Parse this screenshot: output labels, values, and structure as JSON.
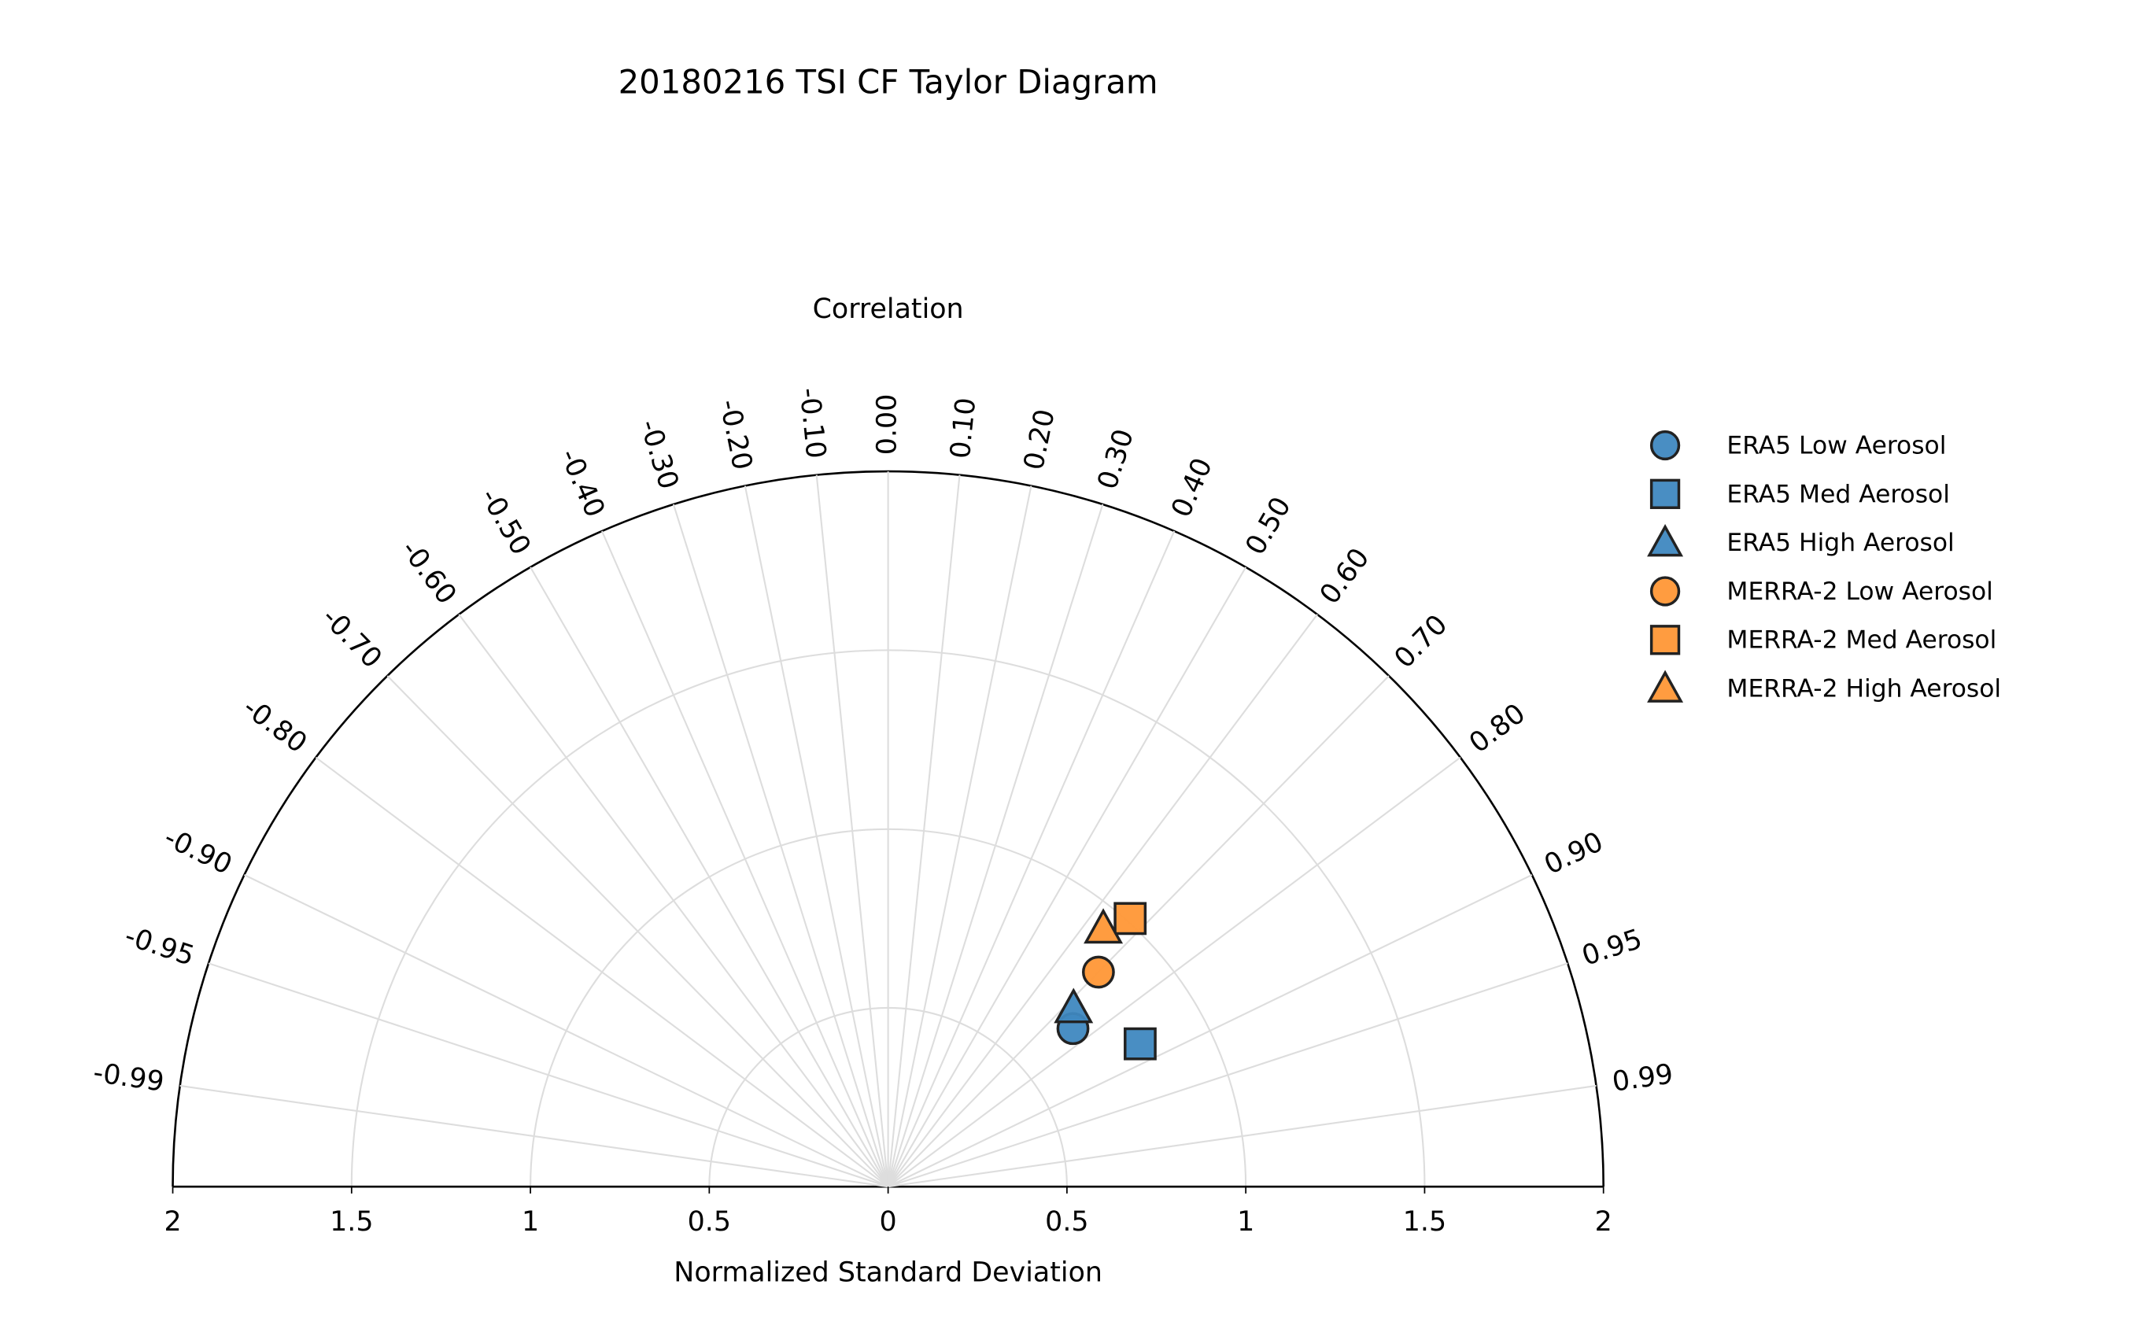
{
  "chart_data": {
    "type": "taylor",
    "title": "20180216 TSI CF Taylor Diagram",
    "xlabel": "Normalized Standard Deviation",
    "angular_label": "Correlation",
    "std_range": [
      0,
      2
    ],
    "std_ticks": [
      "2",
      "1.5",
      "1",
      "0.5",
      "0",
      "0.5",
      "1",
      "1.5",
      "2"
    ],
    "correlation_ticks": [
      -0.99,
      -0.95,
      -0.9,
      -0.8,
      -0.7,
      -0.6,
      -0.5,
      -0.4,
      -0.3,
      -0.2,
      -0.1,
      0.0,
      0.1,
      0.2,
      0.3,
      0.4,
      0.5,
      0.6,
      0.7,
      0.8,
      0.9,
      0.95,
      0.99
    ],
    "grid": true,
    "legend_position": "right",
    "colors": {
      "ERA5": "#3f88c0",
      "MERRA-2": "#ff9736"
    },
    "series": [
      {
        "name": "ERA5 Low Aerosol",
        "marker": "circle",
        "color": "#3f88c0",
        "std": 0.68,
        "correlation": 0.76
      },
      {
        "name": "ERA5 Med Aerosol",
        "marker": "square",
        "color": "#3f88c0",
        "std": 0.81,
        "correlation": 0.87
      },
      {
        "name": "ERA5 High Aerosol",
        "marker": "triangle",
        "color": "#3f88c0",
        "std": 0.72,
        "correlation": 0.72
      },
      {
        "name": "MERRA-2 Low Aerosol",
        "marker": "circle",
        "color": "#ff9736",
        "std": 0.84,
        "correlation": 0.7
      },
      {
        "name": "MERRA-2 Med Aerosol",
        "marker": "square",
        "color": "#ff9736",
        "std": 1.01,
        "correlation": 0.67
      },
      {
        "name": "MERRA-2 High Aerosol",
        "marker": "triangle",
        "color": "#ff9736",
        "std": 0.94,
        "correlation": 0.64
      }
    ]
  }
}
